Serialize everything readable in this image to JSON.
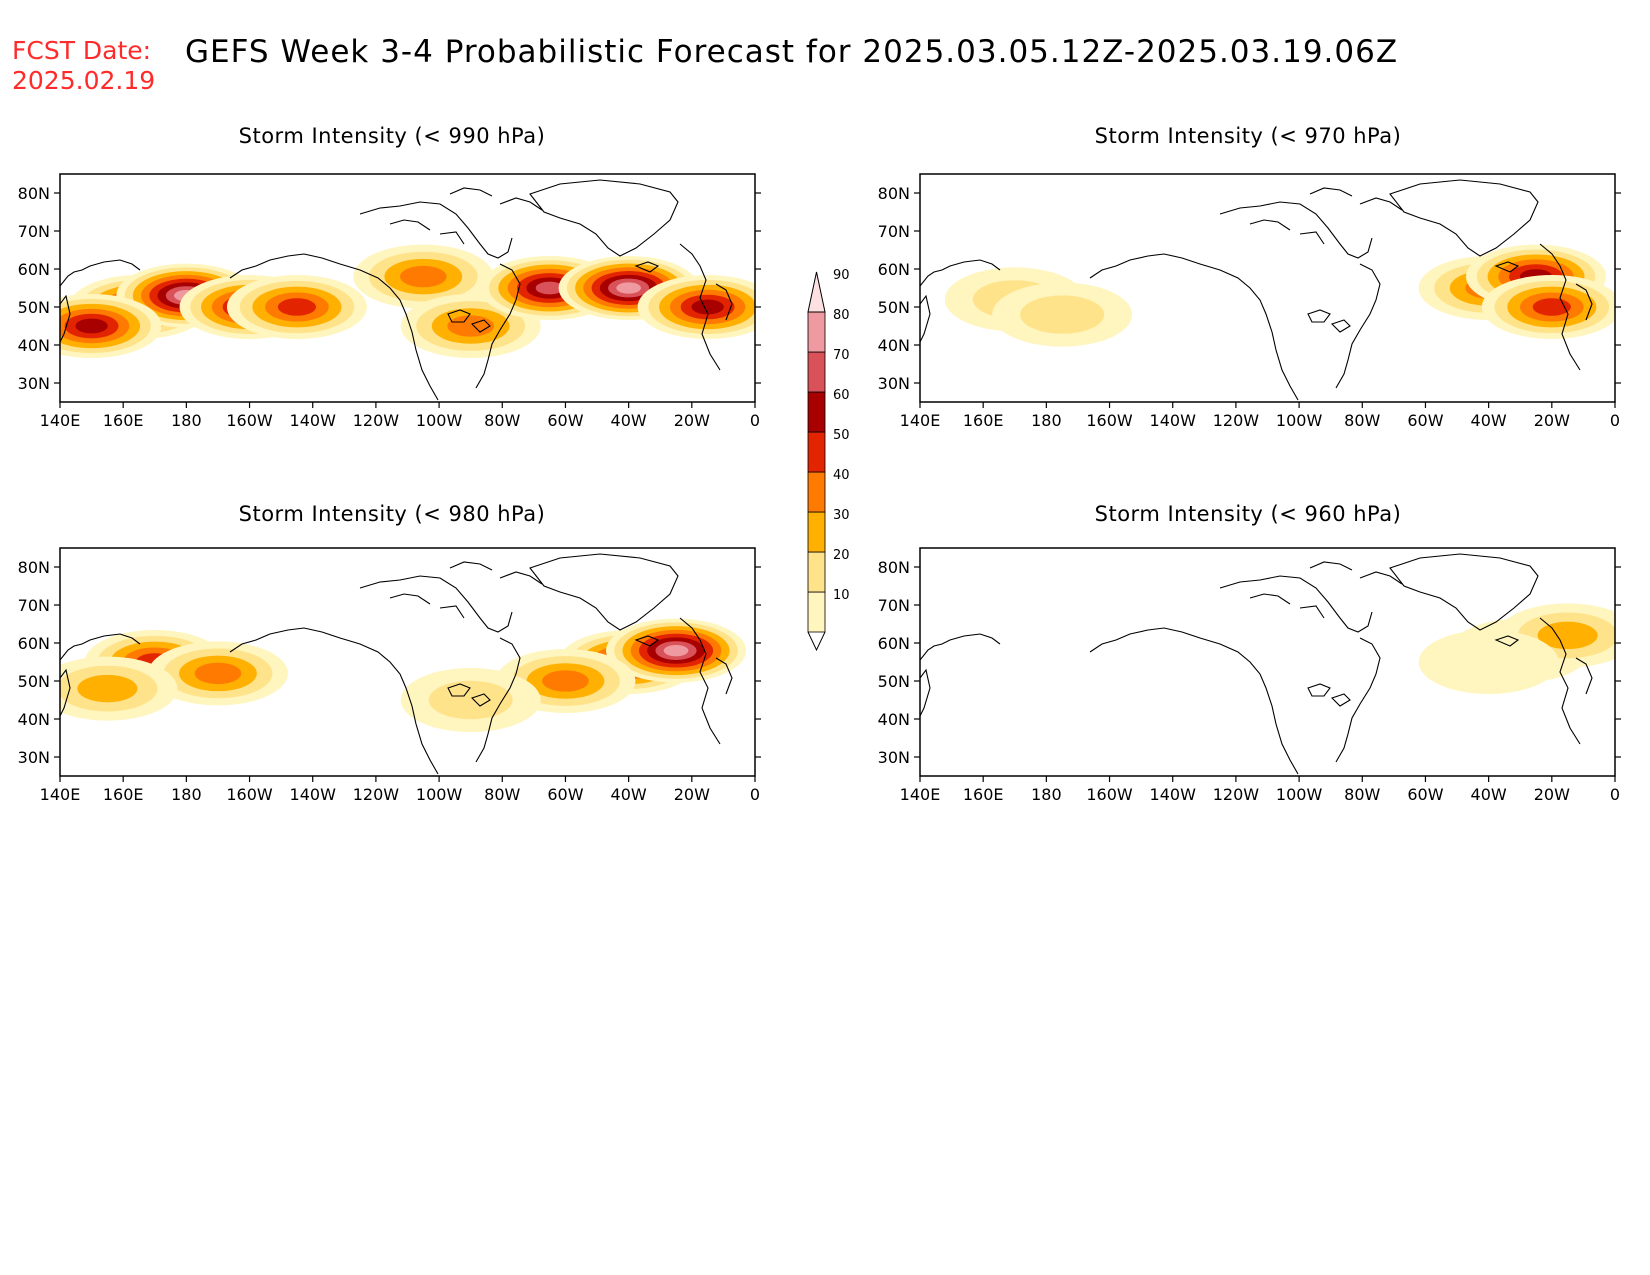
{
  "header": {
    "fcst_label": "FCST Date:",
    "fcst_date": "2025.02.19",
    "title": "GEFS Week 3-4 Probabilistic Forecast for 2025.03.05.12Z-2025.03.19.06Z"
  },
  "axes": {
    "lat_labels": [
      "80N",
      "70N",
      "60N",
      "50N",
      "40N",
      "30N"
    ],
    "lon_labels": [
      "140E",
      "160E",
      "180",
      "160W",
      "140W",
      "120W",
      "100W",
      "80W",
      "60W",
      "40W",
      "20W",
      "0"
    ]
  },
  "panels": [
    {
      "id": "p990",
      "title": "Storm Intensity (< 990 hPa)"
    },
    {
      "id": "p970",
      "title": "Storm Intensity (< 970 hPa)"
    },
    {
      "id": "p980",
      "title": "Storm Intensity (< 980 hPa)"
    },
    {
      "id": "p960",
      "title": "Storm Intensity (< 960 hPa)"
    }
  ],
  "colorbar": {
    "levels": [
      "10",
      "20",
      "30",
      "40",
      "50",
      "60",
      "70",
      "80",
      "90"
    ],
    "colors": [
      "#fff5bf",
      "#ffe38a",
      "#ffb000",
      "#ff7a00",
      "#e32400",
      "#a80000",
      "#d9525a",
      "#ee9aa0",
      "#fde0e2"
    ]
  },
  "chart_data": {
    "type": "heatmap",
    "x_range": [
      "140E",
      "0"
    ],
    "y_range": [
      "25N",
      "85N"
    ],
    "panels": [
      {
        "title": "Storm Intensity (< 990 hPa)",
        "blobs": [
          {
            "lon": 165,
            "lat": 50,
            "level": 60
          },
          {
            "lon": 180,
            "lat": 53,
            "level": 80
          },
          {
            "lon": -160,
            "lat": 50,
            "level": 60
          },
          {
            "lon": -145,
            "lat": 50,
            "level": 50
          },
          {
            "lon": 150,
            "lat": 45,
            "level": 60
          },
          {
            "lon": -105,
            "lat": 58,
            "level": 40
          },
          {
            "lon": -90,
            "lat": 45,
            "level": 40
          },
          {
            "lon": -65,
            "lat": 55,
            "level": 70
          },
          {
            "lon": -40,
            "lat": 55,
            "level": 80
          },
          {
            "lon": -15,
            "lat": 50,
            "level": 60
          }
        ]
      },
      {
        "title": "Storm Intensity (< 970 hPa)",
        "blobs": [
          {
            "lon": 170,
            "lat": 52,
            "level": 20
          },
          {
            "lon": -175,
            "lat": 48,
            "level": 20
          },
          {
            "lon": -40,
            "lat": 55,
            "level": 40
          },
          {
            "lon": -25,
            "lat": 58,
            "level": 60
          },
          {
            "lon": -20,
            "lat": 50,
            "level": 50
          }
        ]
      },
      {
        "title": "Storm Intensity (< 980 hPa)",
        "blobs": [
          {
            "lon": 170,
            "lat": 55,
            "level": 50
          },
          {
            "lon": -170,
            "lat": 52,
            "level": 40
          },
          {
            "lon": 155,
            "lat": 48,
            "level": 30
          },
          {
            "lon": -40,
            "lat": 55,
            "level": 60
          },
          {
            "lon": -25,
            "lat": 58,
            "level": 80
          },
          {
            "lon": -60,
            "lat": 50,
            "level": 40
          },
          {
            "lon": -90,
            "lat": 45,
            "level": 20
          }
        ]
      },
      {
        "title": "Storm Intensity (< 960 hPa)",
        "blobs": [
          {
            "lon": -30,
            "lat": 58,
            "level": 20
          },
          {
            "lon": -15,
            "lat": 62,
            "level": 30
          },
          {
            "lon": -40,
            "lat": 55,
            "level": 10
          }
        ]
      }
    ]
  }
}
